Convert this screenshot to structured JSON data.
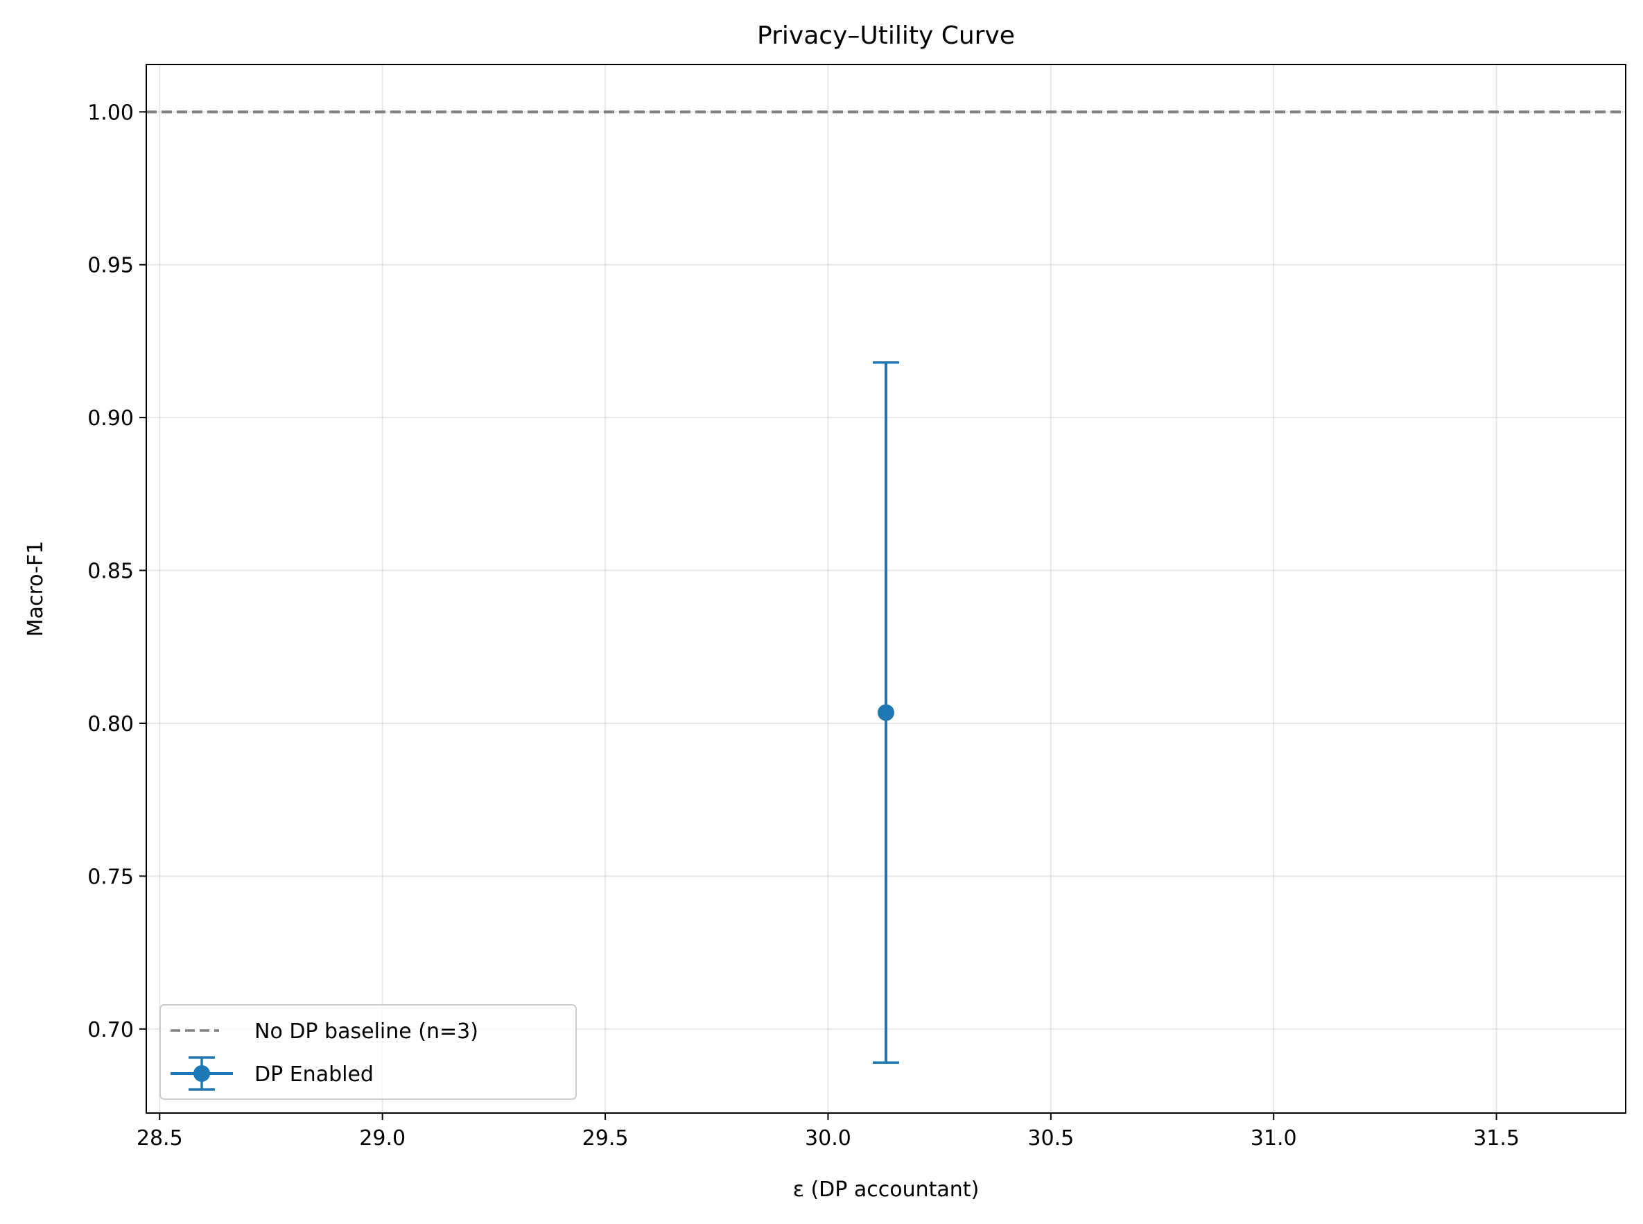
{
  "chart_data": {
    "type": "scatter",
    "title": "Privacy–Utility Curve",
    "xlabel": "ε (DP accountant)",
    "ylabel": "Macro-F1",
    "xlim": [
      28.47,
      31.79
    ],
    "ylim": [
      0.6725,
      1.0155
    ],
    "xticks": [
      28.5,
      29.0,
      29.5,
      30.0,
      30.5,
      31.0,
      31.5
    ],
    "xtick_labels": [
      "28.5",
      "29.0",
      "29.5",
      "30.0",
      "30.5",
      "31.0",
      "31.5"
    ],
    "yticks": [
      0.7,
      0.75,
      0.8,
      0.85,
      0.9,
      0.95,
      1.0
    ],
    "ytick_labels": [
      "0.70",
      "0.75",
      "0.80",
      "0.85",
      "0.90",
      "0.95",
      "1.00"
    ],
    "grid": true,
    "legend_position": "lower-left",
    "baseline": {
      "name": "No DP baseline (n=3)",
      "y": 1.0,
      "color": "#808080",
      "style": "dashed"
    },
    "series": [
      {
        "name": "DP Enabled",
        "color": "#1f77b4",
        "marker": "circle",
        "points": [
          {
            "x": 30.13,
            "y": 0.8035,
            "yerr_low": 0.689,
            "yerr_high": 0.918
          }
        ]
      }
    ]
  }
}
